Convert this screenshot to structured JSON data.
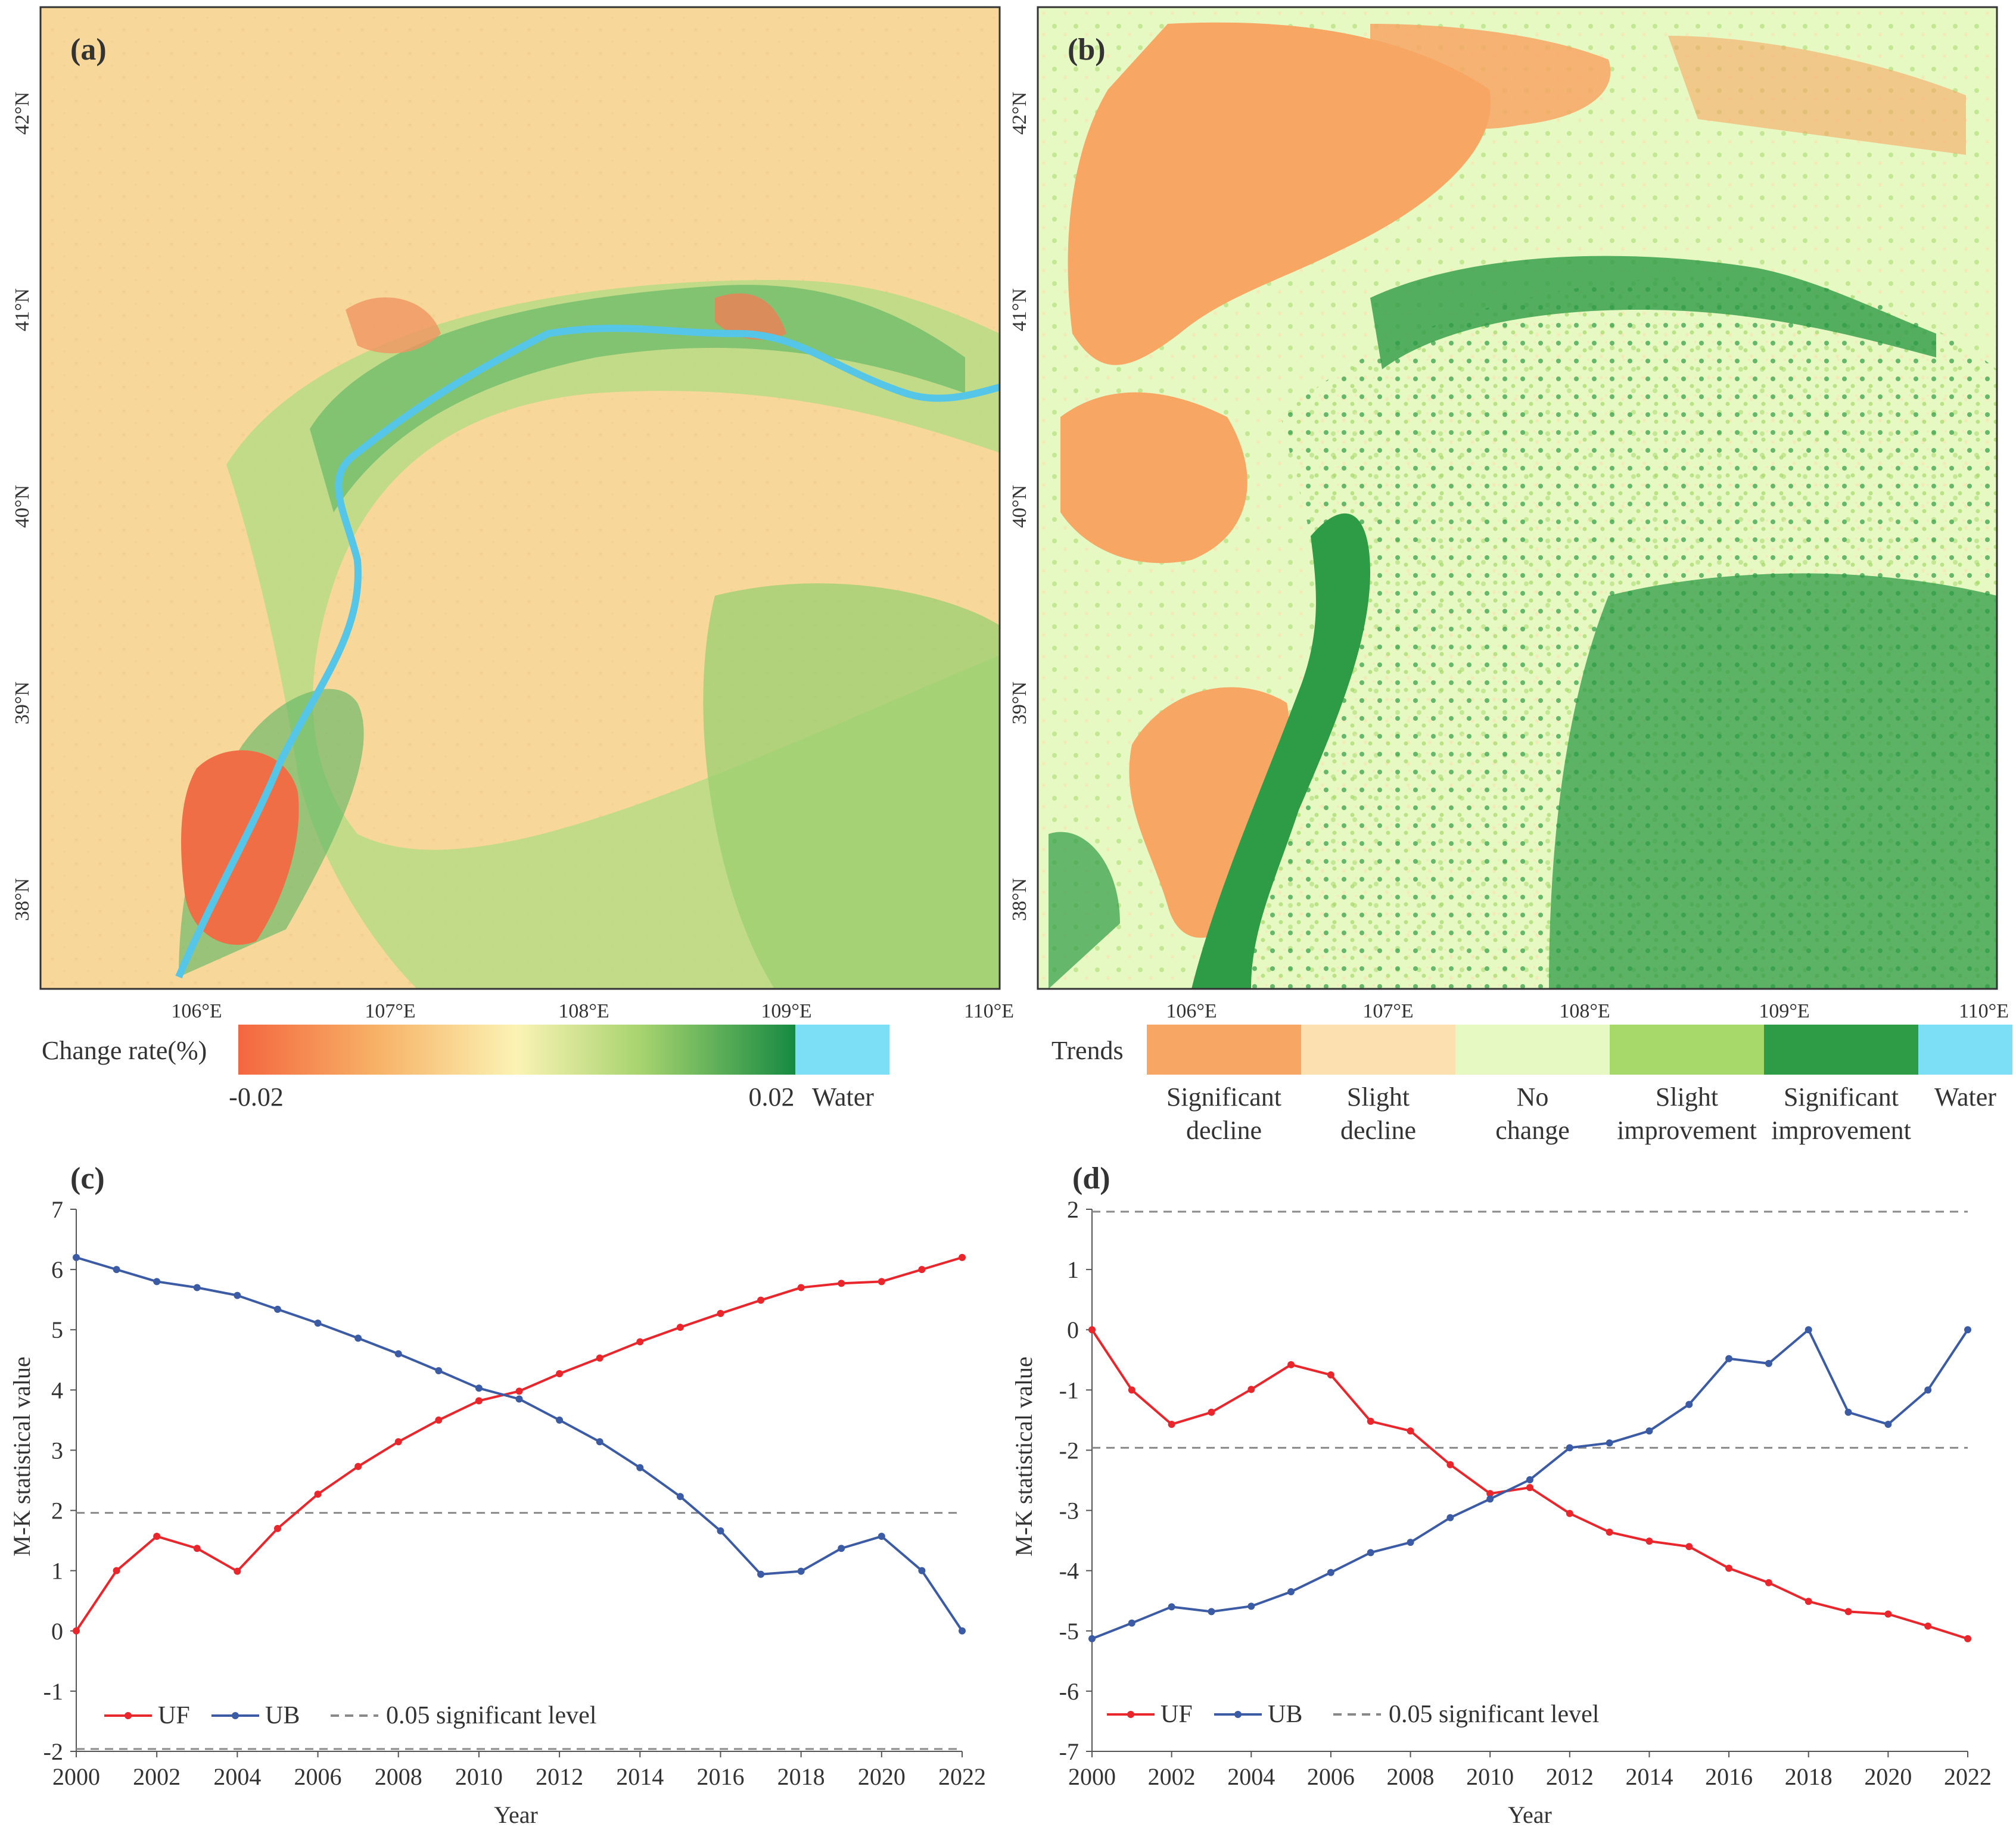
{
  "panel_a": {
    "label": "(a)",
    "lat_ticks": [
      "42°N",
      "41°N",
      "40°N",
      "39°N",
      "38°N"
    ],
    "lon_ticks": [
      "106°E",
      "107°E",
      "108°E",
      "109°E",
      "110°E"
    ],
    "legend": {
      "title": "Change rate(%)",
      "min": "-0.02",
      "max": "0.02",
      "water": "Water",
      "colors": [
        "#f4663f",
        "#f7b267",
        "#fbedb0",
        "#a8d46f",
        "#1b9147",
        "#7ddff5"
      ]
    }
  },
  "panel_b": {
    "label": "(b)",
    "lat_ticks": [
      "42°N",
      "41°N",
      "40°N",
      "39°N",
      "38°N"
    ],
    "lon_ticks": [
      "106°E",
      "107°E",
      "108°E",
      "109°E",
      "110°E"
    ],
    "legend": {
      "title": "Trends",
      "classes": [
        {
          "line1": "Significant",
          "line2": "decline",
          "color": "#f7a664"
        },
        {
          "line1": "Slight",
          "line2": "decline",
          "color": "#fde0b0"
        },
        {
          "line1": "No",
          "line2": "change",
          "color": "#e6f9c3"
        },
        {
          "line1": "Slight",
          "line2": "improvement",
          "color": "#a6d96a"
        },
        {
          "line1": "Significant",
          "line2": "improvement",
          "color": "#2e9b47"
        },
        {
          "line1": "Water",
          "line2": "",
          "color": "#7ddff5"
        }
      ]
    }
  },
  "chart_data": [
    {
      "panel": "(c)",
      "type": "line",
      "xlabel": "Year",
      "ylabel": "M-K statistical value",
      "ylim": [
        -2,
        7
      ],
      "yticks": [
        -2,
        -1,
        0,
        1,
        2,
        3,
        4,
        5,
        6,
        7
      ],
      "xticks": [
        2000,
        2002,
        2004,
        2006,
        2008,
        2010,
        2012,
        2014,
        2016,
        2018,
        2020,
        2022
      ],
      "x": [
        2000,
        2001,
        2002,
        2003,
        2004,
        2005,
        2006,
        2007,
        2008,
        2009,
        2010,
        2011,
        2012,
        2013,
        2014,
        2015,
        2016,
        2017,
        2018,
        2019,
        2020,
        2021,
        2022
      ],
      "series": [
        {
          "name": "UF",
          "color": "#e8262b",
          "values": [
            0,
            1.0,
            1.57,
            1.37,
            0.99,
            1.7,
            2.27,
            2.73,
            3.14,
            3.5,
            3.82,
            3.98,
            4.27,
            4.53,
            4.8,
            5.04,
            5.27,
            5.49,
            5.7,
            5.77,
            5.8,
            6.0,
            6.2
          ]
        },
        {
          "name": "UB",
          "color": "#3b5ba5",
          "values": [
            6.2,
            6.0,
            5.8,
            5.7,
            5.57,
            5.34,
            5.11,
            4.86,
            4.6,
            4.32,
            4.03,
            3.85,
            3.5,
            3.14,
            2.71,
            2.23,
            1.66,
            0.94,
            0.99,
            1.37,
            1.57,
            1.0,
            0
          ]
        }
      ],
      "significance": {
        "label": "0.05 significant level",
        "values": [
          1.96,
          -1.96
        ]
      }
    },
    {
      "panel": "(d)",
      "type": "line",
      "xlabel": "Year",
      "ylabel": "M-K statistical value",
      "ylim": [
        -7,
        2
      ],
      "yticks": [
        -7,
        -6,
        -5,
        -4,
        -3,
        -2,
        -1,
        0,
        1,
        2
      ],
      "xticks": [
        2000,
        2002,
        2004,
        2006,
        2008,
        2010,
        2012,
        2014,
        2016,
        2018,
        2020,
        2022
      ],
      "x": [
        2000,
        2001,
        2002,
        2003,
        2004,
        2005,
        2006,
        2007,
        2008,
        2009,
        2010,
        2011,
        2012,
        2013,
        2014,
        2015,
        2016,
        2017,
        2018,
        2019,
        2020,
        2021,
        2022
      ],
      "series": [
        {
          "name": "UF",
          "color": "#e8262b",
          "values": [
            0,
            -1.0,
            -1.57,
            -1.37,
            -0.99,
            -0.58,
            -0.75,
            -1.52,
            -1.68,
            -2.24,
            -2.72,
            -2.62,
            -3.05,
            -3.36,
            -3.51,
            -3.6,
            -3.96,
            -4.2,
            -4.51,
            -4.68,
            -4.72,
            -4.92,
            -5.13
          ]
        },
        {
          "name": "UB",
          "color": "#3b5ba5",
          "values": [
            -5.13,
            -4.87,
            -4.6,
            -4.68,
            -4.59,
            -4.35,
            -4.03,
            -3.7,
            -3.53,
            -3.12,
            -2.81,
            -2.49,
            -1.96,
            -1.88,
            -1.68,
            -1.24,
            -0.48,
            -0.56,
            0,
            -1.37,
            -1.57,
            -1.0,
            0
          ]
        }
      ],
      "significance": {
        "label": "0.05 significant level",
        "values": [
          1.96,
          -1.96
        ]
      }
    }
  ]
}
